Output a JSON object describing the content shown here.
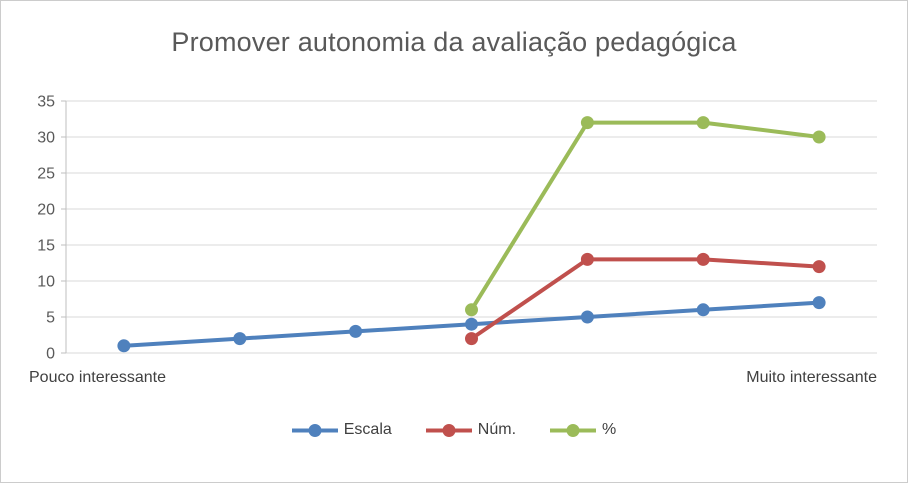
{
  "chart_data": {
    "type": "line",
    "title": "Promover autonomia da avaliação pedagógica",
    "series": [
      {
        "name": "Escala",
        "color": "#4f81bd",
        "values": [
          1,
          2,
          3,
          4,
          5,
          6,
          7
        ]
      },
      {
        "name": "Núm.",
        "color": "#c0504d",
        "values": [
          null,
          null,
          null,
          2,
          13,
          13,
          12
        ]
      },
      {
        "name": "%",
        "color": "#9bbb59",
        "values": [
          null,
          null,
          null,
          6,
          32,
          32,
          30
        ]
      }
    ],
    "x_axis": {
      "left_label": "Pouco interessante",
      "right_label": "Muito interessante"
    },
    "ylim": [
      0,
      35
    ],
    "ytick_step": 5,
    "ytick_labels": [
      "0",
      "5",
      "10",
      "15",
      "20",
      "25",
      "30",
      "35"
    ],
    "grid": true,
    "legend_position": "bottom",
    "colors": {
      "title_text": "#595959",
      "tick_label": "#595959",
      "axis_label": "#404040",
      "gridline": "#d9d9d9",
      "axis_line": "#bfbfbf",
      "background": "#ffffff"
    }
  }
}
